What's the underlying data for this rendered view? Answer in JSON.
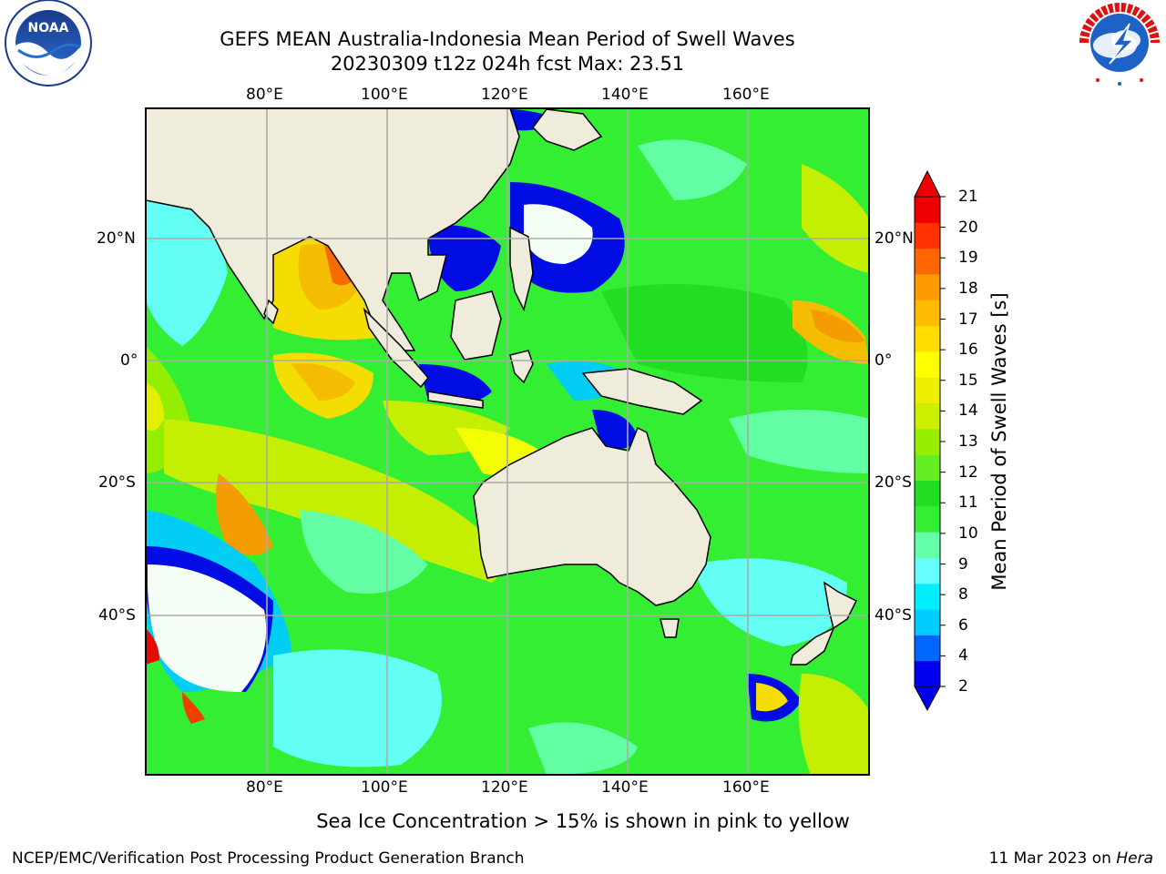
{
  "title": {
    "line1": "GEFS MEAN Australia-Indonesia Mean Period of Swell Waves",
    "line2": "20230309 t12z 024h fcst   Max: 23.51"
  },
  "map": {
    "lon_labels": [
      "80°E",
      "100°E",
      "120°E",
      "140°E",
      "160°E"
    ],
    "lat_labels": [
      "20°N",
      "0°",
      "20°S",
      "40°S"
    ],
    "land_color": "#efecdc",
    "ocean_base_color": "#33ee33"
  },
  "colorbar": {
    "label": "Mean Period of Swell Waves [s]",
    "ticks": [
      "21",
      "20",
      "19",
      "18",
      "17",
      "16",
      "15",
      "14",
      "13",
      "12",
      "11",
      "10",
      "9",
      "8",
      "6",
      "4",
      "2"
    ],
    "colors": [
      "#0000ee",
      "#0066ff",
      "#00ccff",
      "#00eeff",
      "#66ffff",
      "#66ffaa",
      "#33ee33",
      "#22dd22",
      "#66ee22",
      "#99ee00",
      "#ccee00",
      "#eeee00",
      "#ffff00",
      "#ffdd00",
      "#ffbb00",
      "#ff9900",
      "#ff6600",
      "#ff3300",
      "#ee0000"
    ]
  },
  "note": "Sea Ice Concentration > 15% is shown in pink to yellow",
  "footer": {
    "left": "NCEP/EMC/Verification Post Processing Product Generation Branch",
    "right_date": "11 Mar 2023 on ",
    "right_host": "Hera"
  },
  "logos": {
    "left": "NOAA",
    "right": "NATIONAL WEATHER SERVICE"
  }
}
